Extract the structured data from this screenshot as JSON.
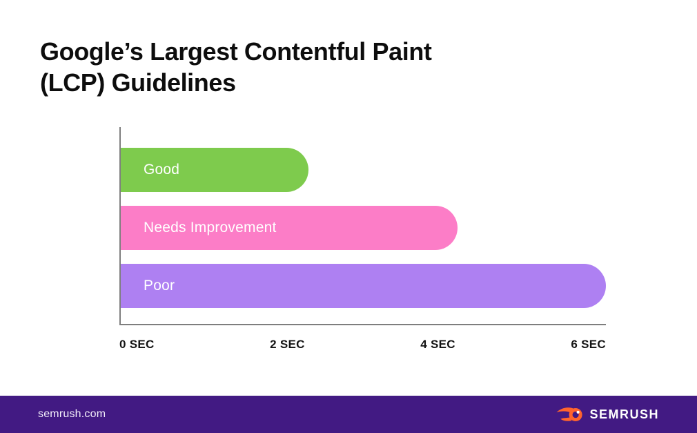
{
  "title": {
    "line1": "Google’s Largest Contentful Paint",
    "line2": "(LCP) Guidelines"
  },
  "chart_data": {
    "type": "bar",
    "orientation": "horizontal",
    "title": "Google’s Largest Contentful Paint (LCP) Guidelines",
    "categories": [
      "Good",
      "Needs Improvement",
      "Poor"
    ],
    "values": [
      2.4,
      4.3,
      6.2
    ],
    "unit": "sec",
    "xlim": [
      0,
      6.2
    ],
    "tick_labels": [
      "0 SEC",
      "2 SEC",
      "4 SEC",
      "6 SEC"
    ],
    "bar_colors": [
      "#7ECB4D",
      "#FC7DC7",
      "#AE80F2"
    ],
    "label_color": "#ffffff",
    "axis_color": "#7e7e7e",
    "grid": false,
    "legend": "none"
  },
  "footer": {
    "site": "semrush.com",
    "brand": "SEMRUSH",
    "background": "#421A83",
    "logo_color": "#FF642D"
  }
}
